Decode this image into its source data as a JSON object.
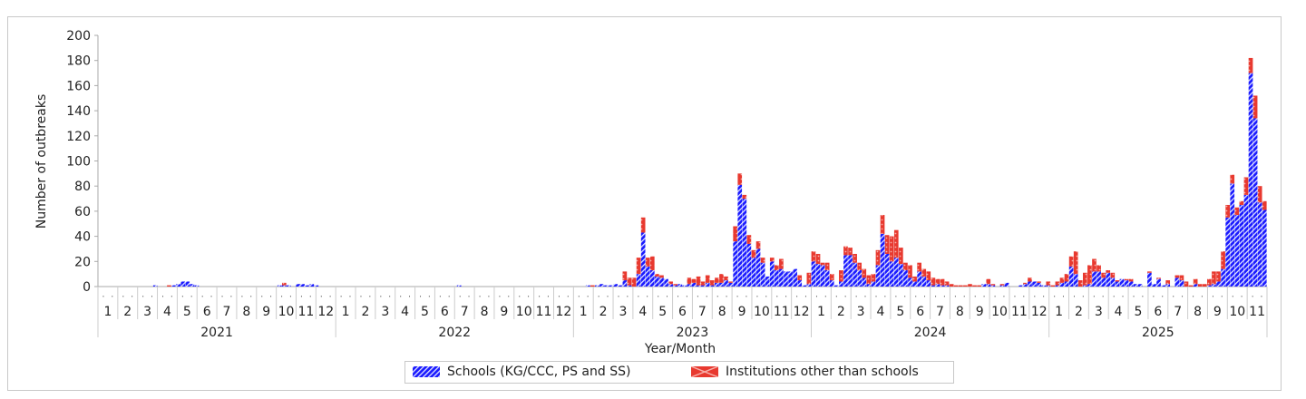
{
  "chart_data": {
    "type": "bar",
    "stacked": true,
    "title": "",
    "xlabel": "Year/Month",
    "ylabel": "Number of outbreaks",
    "ylim": [
      0,
      200
    ],
    "yticks": [
      0,
      20,
      40,
      60,
      80,
      100,
      120,
      140,
      160,
      180,
      200
    ],
    "x_granularity": "weekly",
    "x_start": "2021-01",
    "x_end": "2025-11",
    "years": [
      "2021",
      "2022",
      "2023",
      "2024",
      "2025"
    ],
    "month_labels": [
      "1",
      "2",
      "3",
      "4",
      "5",
      "6",
      "7",
      "8",
      "9",
      "10",
      "11",
      "12"
    ],
    "last_year_months": 11,
    "legend_position": "bottom",
    "colors": {
      "schools": "#1a1aff",
      "others": "#e8392f"
    },
    "series": [
      {
        "name": "Schools (KG/CCC, PS and SS)",
        "values": [
          0,
          0,
          0,
          0,
          0,
          0,
          0,
          0,
          0,
          0,
          0,
          0,
          1,
          0,
          0,
          0,
          1,
          2,
          4,
          4,
          2,
          1,
          0,
          0,
          0,
          0,
          0,
          0,
          0,
          0,
          0,
          0,
          0,
          0,
          0,
          0,
          0,
          0,
          0,
          1,
          1,
          1,
          0,
          2,
          2,
          1,
          2,
          1,
          0,
          0,
          0,
          0,
          0,
          0,
          0,
          0,
          0,
          0,
          0,
          0,
          0,
          0,
          0,
          0,
          0,
          0,
          0,
          0,
          0,
          0,
          0,
          0,
          0,
          0,
          0,
          0,
          0,
          0,
          1,
          0,
          0,
          0,
          0,
          0,
          0,
          0,
          0,
          0,
          0,
          0,
          0,
          0,
          0,
          0,
          0,
          0,
          0,
          0,
          0,
          0,
          0,
          0,
          0,
          0,
          0,
          0,
          1,
          0,
          1,
          2,
          1,
          1,
          2,
          1,
          5,
          1,
          0,
          10,
          43,
          16,
          13,
          8,
          7,
          6,
          2,
          1,
          2,
          1,
          2,
          3,
          1,
          1,
          3,
          1,
          3,
          3,
          5,
          3,
          36,
          81,
          70,
          34,
          23,
          30,
          19,
          8,
          20,
          13,
          14,
          12,
          12,
          14,
          5,
          1,
          2,
          20,
          18,
          17,
          13,
          5,
          1,
          4,
          25,
          25,
          19,
          13,
          7,
          2,
          4,
          17,
          42,
          26,
          20,
          23,
          18,
          13,
          7,
          4,
          12,
          8,
          5,
          1,
          2,
          1,
          1,
          0,
          0,
          0,
          0,
          0,
          0,
          0,
          2,
          2,
          1,
          0,
          1,
          3,
          0,
          0,
          1,
          2,
          4,
          4,
          3,
          1,
          1,
          0,
          1,
          3,
          4,
          16,
          10,
          0,
          1,
          2,
          12,
          12,
          7,
          11,
          7,
          4,
          6,
          5,
          4,
          2,
          2,
          0,
          11,
          2,
          6,
          1,
          2,
          0,
          7,
          5,
          0,
          0,
          2,
          0,
          0,
          1,
          2,
          4,
          14,
          55,
          82,
          57,
          65,
          73,
          170,
          134,
          67,
          61
        ]
      },
      {
        "name": "Institutions other than schools",
        "values": [
          0,
          0,
          0,
          0,
          0,
          0,
          0,
          0,
          0,
          0,
          0,
          0,
          0,
          0,
          0,
          1,
          0,
          0,
          0,
          0,
          0,
          0,
          0,
          0,
          0,
          0,
          0,
          0,
          0,
          0,
          0,
          0,
          0,
          0,
          0,
          0,
          0,
          0,
          0,
          0,
          2,
          0,
          0,
          0,
          0,
          0,
          0,
          0,
          0,
          0,
          0,
          0,
          0,
          0,
          0,
          0,
          0,
          0,
          0,
          0,
          0,
          0,
          0,
          0,
          0,
          0,
          0,
          0,
          0,
          0,
          0,
          0,
          0,
          0,
          0,
          0,
          0,
          0,
          0,
          0,
          0,
          0,
          0,
          0,
          0,
          0,
          0,
          0,
          0,
          0,
          0,
          0,
          0,
          0,
          0,
          0,
          0,
          0,
          0,
          0,
          0,
          0,
          0,
          0,
          0,
          0,
          0,
          1,
          0,
          0,
          0,
          0,
          0,
          0,
          7,
          6,
          7,
          13,
          12,
          7,
          11,
          2,
          2,
          0,
          2,
          1,
          0,
          0,
          5,
          3,
          7,
          3,
          6,
          4,
          4,
          7,
          3,
          1,
          12,
          9,
          3,
          7,
          6,
          6,
          4,
          0,
          3,
          4,
          8,
          0,
          0,
          0,
          4,
          0,
          9,
          8,
          8,
          2,
          6,
          5,
          0,
          9,
          7,
          6,
          7,
          6,
          7,
          7,
          6,
          12,
          15,
          15,
          20,
          22,
          13,
          6,
          10,
          4,
          7,
          6,
          7,
          6,
          4,
          5,
          3,
          2,
          1,
          1,
          1,
          2,
          1,
          1,
          0,
          4,
          1,
          0,
          1,
          0,
          0,
          0,
          0,
          1,
          3,
          0,
          1,
          0,
          3,
          1,
          3,
          4,
          6,
          8,
          18,
          5,
          10,
          15,
          10,
          5,
          4,
          2,
          4,
          1,
          0,
          1,
          2,
          0,
          0,
          0,
          1,
          0,
          1,
          0,
          3,
          0,
          2,
          4,
          4,
          1,
          4,
          2,
          2,
          5,
          10,
          8,
          14,
          10,
          7,
          6,
          3,
          14,
          12,
          18,
          13,
          7
        ]
      }
    ]
  }
}
